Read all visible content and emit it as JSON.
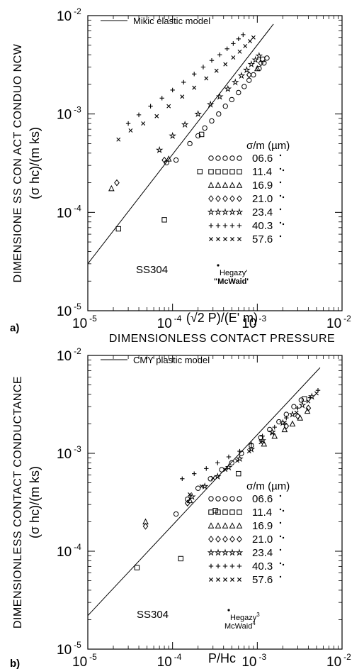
{
  "chart_data": [
    {
      "type": "scatter",
      "panel_label": "a)",
      "xscale": "log",
      "yscale": "log",
      "xlim": [
        1e-05,
        0.01
      ],
      "ylim": [
        1e-05,
        0.01
      ],
      "x_ticks": [
        {
          "base": "10",
          "exp": "-5"
        },
        {
          "base": "10",
          "exp": "-4"
        },
        {
          "base": "10",
          "exp": "-3"
        },
        {
          "base": "10",
          "exp": "-2"
        }
      ],
      "y_ticks": [
        {
          "base": "10",
          "exp": "-5"
        },
        {
          "base": "10",
          "exp": "-4"
        },
        {
          "base": "10",
          "exp": "-3"
        },
        {
          "base": "10",
          "exp": "-2"
        }
      ],
      "xlabel": "DIMENSIONLESS CONTACT PRESSURE",
      "xlabel2": "(√2 P)/(E' m)",
      "ylabel": "DIMENSIONE SS CON ACT CONDUO NCW",
      "ylabel2": "(σ hc)/(m ks)",
      "model_legend": "Mikic elastic model",
      "model_line": {
        "x": [
          1e-05,
          0.00155
        ],
        "y": [
          3e-05,
          0.0082
        ]
      },
      "legend_title": "σ/m (µm)",
      "material": "SS304",
      "source_note": "Hegazy'",
      "source_note2": "\"McWaid'",
      "series": [
        {
          "name": "06.6",
          "marker": "circle",
          "x": [
            8.5e-05,
            0.00011,
            0.00016,
            0.0002,
            0.00024,
            0.00029,
            0.00035,
            0.00042,
            0.0005,
            0.0006,
            0.0007,
            0.0008,
            0.0009,
            0.00105,
            0.0012,
            0.0013
          ],
          "y": [
            0.00032,
            0.00034,
            0.0005,
            0.0006,
            0.00072,
            0.00085,
            0.001,
            0.0012,
            0.0014,
            0.00165,
            0.0019,
            0.0022,
            0.0025,
            0.0029,
            0.0033,
            0.0037
          ]
        },
        {
          "name": "11.4",
          "marker": "square",
          "x": [
            2.3e-05,
            8e-05,
            0.00021,
            0.00022,
            0.00115
          ],
          "y": [
            6.8e-05,
            8.4e-05,
            0.00026,
            0.00062,
            0.0036
          ]
        },
        {
          "name": "16.9",
          "marker": "triangle",
          "x": [
            1.9e-05,
            9e-05,
            0.001
          ],
          "y": [
            0.000175,
            0.00035,
            0.0029
          ]
        },
        {
          "name": "21.0",
          "marker": "diamond",
          "x": [
            2.2e-05,
            8e-05,
            0.0008,
            0.0011
          ],
          "y": [
            0.0002,
            0.00034,
            0.0025,
            0.0033
          ]
        },
        {
          "name": "23.4",
          "marker": "star",
          "x": [
            7e-05,
            0.0001,
            0.00014,
            0.0002,
            0.00028,
            0.00036,
            0.00045,
            0.00055,
            0.00065,
            0.00075,
            0.00085,
            0.00095,
            0.00105
          ],
          "y": [
            0.00043,
            0.0006,
            0.00078,
            0.001,
            0.00125,
            0.0015,
            0.0018,
            0.0021,
            0.00245,
            0.0028,
            0.0032,
            0.00355,
            0.0039
          ]
        },
        {
          "name": "40.3",
          "marker": "plus",
          "x": [
            3e-05,
            4e-05,
            5.5e-05,
            7.5e-05,
            0.0001,
            0.000135,
            0.00018,
            0.00023,
            0.00029,
            0.00036,
            0.00044,
            0.00052,
            0.0006,
            0.00068
          ],
          "y": [
            0.0008,
            0.00098,
            0.0012,
            0.00145,
            0.00175,
            0.0021,
            0.00255,
            0.003,
            0.0035,
            0.004,
            0.0046,
            0.0052,
            0.0058,
            0.0064
          ]
        },
        {
          "name": "57.6",
          "marker": "cross",
          "x": [
            2.3e-05,
            3.2e-05,
            4.5e-05,
            6.5e-05,
            9e-05,
            0.00013,
            0.00018,
            0.00025,
            0.00033,
            0.00042,
            0.00052,
            0.00062,
            0.00072,
            0.00082,
            0.0009
          ],
          "y": [
            0.00055,
            0.00068,
            0.0008,
            0.00095,
            0.0012,
            0.0015,
            0.00185,
            0.0023,
            0.00275,
            0.0032,
            0.00375,
            0.0043,
            0.0049,
            0.0055,
            0.006
          ]
        }
      ]
    },
    {
      "type": "scatter",
      "panel_label": "b)",
      "xscale": "log",
      "yscale": "log",
      "xlim": [
        1e-05,
        0.01
      ],
      "ylim": [
        1e-05,
        0.01
      ],
      "x_ticks": [
        {
          "base": "10",
          "exp": "-5"
        },
        {
          "base": "10",
          "exp": "-4"
        },
        {
          "base": "10",
          "exp": "-3"
        },
        {
          "base": "10",
          "exp": "-2"
        }
      ],
      "y_ticks": [
        {
          "base": "10",
          "exp": "-5"
        },
        {
          "base": "10",
          "exp": "-4"
        },
        {
          "base": "10",
          "exp": "-3"
        },
        {
          "base": "10",
          "exp": "-2"
        }
      ],
      "xlabel": "DIMENSIONLESS CONTACT PRESSURE",
      "xlabel2": "P/Hc",
      "ylabel": "DIMENSIONLESS CONTACT CONDUCTANCE",
      "ylabel2": "(σ hc)/(m ks)",
      "model_legend": "CMY plastic model",
      "model_line": {
        "x": [
          1e-05,
          0.0055
        ],
        "y": [
          2.2e-05,
          0.0075
        ]
      },
      "legend_title": "σ/m (µm)",
      "material": "SS304",
      "source_note": "Hegazy",
      "source_note_sup": "3",
      "source_note2": "McWaid",
      "source_note2_sup": "4",
      "series": [
        {
          "name": "06.6",
          "marker": "circle",
          "x": [
            0.00011,
            0.00015,
            0.0002,
            0.00028,
            0.00038,
            0.0005,
            0.00065,
            0.00085,
            0.0011,
            0.0014,
            0.0018,
            0.0022,
            0.0027,
            0.0033
          ],
          "y": [
            0.00024,
            0.00034,
            0.00044,
            0.00055,
            0.00068,
            0.0008,
            0.001,
            0.0012,
            0.00145,
            0.00175,
            0.0021,
            0.0025,
            0.003,
            0.0035
          ]
        },
        {
          "name": "11.4",
          "marker": "square",
          "x": [
            3.8e-05,
            0.000125,
            0.00032,
            0.0006,
            0.0036
          ],
          "y": [
            6.8e-05,
            8.4e-05,
            0.00026,
            0.00062,
            0.0036
          ]
        },
        {
          "name": "16.9",
          "marker": "triangle",
          "x": [
            4.8e-05,
            0.00016,
            0.0012,
            0.0016,
            0.0021,
            0.0026,
            0.0032,
            0.0039
          ],
          "y": [
            0.0002,
            0.00033,
            0.00125,
            0.0015,
            0.00175,
            0.002,
            0.0023,
            0.0027
          ]
        },
        {
          "name": "21.0",
          "marker": "diamond",
          "x": [
            4.8e-05,
            0.00015,
            0.0022,
            0.003,
            0.004
          ],
          "y": [
            0.00018,
            0.00031,
            0.0019,
            0.0024,
            0.0029
          ]
        },
        {
          "name": "23.4",
          "marker": "star",
          "x": [
            0.00017,
            0.00024,
            0.00034,
            0.00046,
            0.00062,
            0.00085,
            0.00115,
            0.0015,
            0.002,
            0.0026,
            0.0034,
            0.0044
          ],
          "y": [
            0.00036,
            0.00046,
            0.00058,
            0.00072,
            0.00088,
            0.0011,
            0.00135,
            0.00165,
            0.00205,
            0.0025,
            0.0031,
            0.0038
          ]
        },
        {
          "name": "40.3",
          "marker": "plus",
          "x": [
            0.00013,
            0.00018,
            0.00025,
            0.00034,
            0.00046,
            0.00062,
            0.00085,
            0.00115,
            0.0016,
            0.0022,
            0.003,
            0.0042,
            0.0052
          ],
          "y": [
            0.00055,
            0.00062,
            0.0007,
            0.0008,
            0.00092,
            0.00105,
            0.00125,
            0.0015,
            0.00185,
            0.0023,
            0.0029,
            0.0037,
            0.0044
          ]
        },
        {
          "name": "57.6",
          "marker": "cross",
          "x": [
            0.00016,
            0.00022,
            0.0003,
            0.00042,
            0.00058,
            0.0008,
            0.0011,
            0.0015,
            0.0021,
            0.0029,
            0.004,
            0.005
          ],
          "y": [
            0.00038,
            0.00046,
            0.00056,
            0.00068,
            0.00084,
            0.00105,
            0.0013,
            0.0016,
            0.00205,
            0.0026,
            0.0034,
            0.0041
          ]
        }
      ]
    }
  ]
}
